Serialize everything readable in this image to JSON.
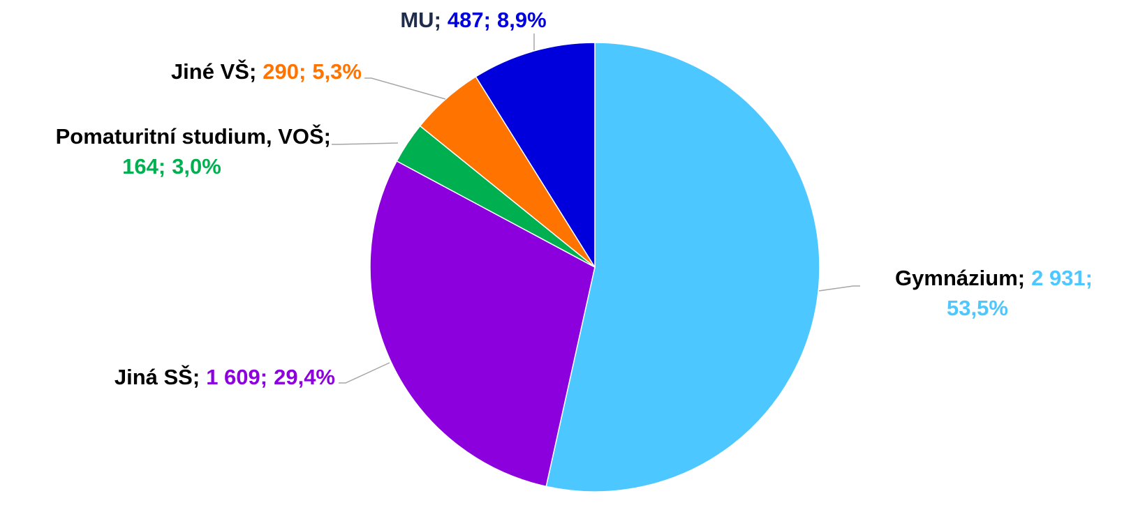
{
  "chart_data": {
    "type": "pie",
    "categories": [
      "Gymnázium",
      "Jiná SŠ",
      "Pomaturitní studium, VOŠ",
      "Jiné VŠ",
      "MU"
    ],
    "values": [
      2931,
      1609,
      164,
      290,
      487
    ],
    "value_labels": [
      "2 931",
      "1 609",
      "164",
      "290",
      "487"
    ],
    "percents": [
      53.5,
      29.4,
      3.0,
      5.3,
      8.9
    ],
    "percent_labels": [
      "53,5%",
      "29,4%",
      "3,0%",
      "5,3%",
      "8,9%"
    ],
    "label_separator": ";",
    "colors": [
      "#4dc7ff",
      "#8c00dd",
      "#00b050",
      "#ff7300",
      "#0000dd"
    ]
  }
}
